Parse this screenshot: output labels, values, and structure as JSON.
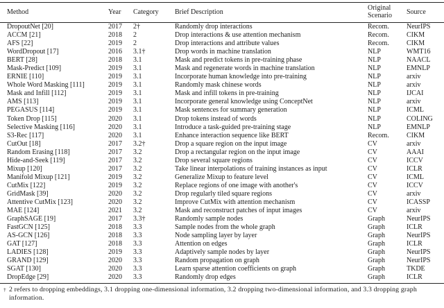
{
  "colors": {
    "text": "#1b1b1b",
    "background": "#ffffff",
    "rule": "#242424"
  },
  "table": {
    "columns": [
      "Method",
      "Year",
      "Category",
      "Brief Description",
      "Original Scenario",
      "Source"
    ],
    "rows": [
      [
        "DropoutNet [20]",
        "2017",
        "2†",
        "Randomly drop interactions",
        "Recom.",
        "NeurIPS"
      ],
      [
        "ACCM [21]",
        "2018",
        "2",
        "Drop interactions & use attention mechanism",
        "Recom.",
        "CIKM"
      ],
      [
        "AFS [22]",
        "2019",
        "2",
        "Drop interactions and attribute values",
        "Recom.",
        "CIKM"
      ],
      [
        "WordDropout [17]",
        "2016",
        "3.1†",
        "Drop words in machine translation",
        "NLP",
        "WMT16"
      ],
      [
        "BERT [28]",
        "2018",
        "3.1",
        "Mask and predict tokens in pre-training phase",
        "NLP",
        "NAACL"
      ],
      [
        "Mask-Predict [109]",
        "2019",
        "3.1",
        "Mask and regenerate words in machine translation",
        "NLP",
        "EMNLP"
      ],
      [
        "ERNIE [110]",
        "2019",
        "3.1",
        "Incorporate human knowledge into pre-training",
        "NLP",
        "arxiv"
      ],
      [
        "Whole Word Masking [111]",
        "2019",
        "3.1",
        "Randomly mask chinese words",
        "NLP",
        "arxiv"
      ],
      [
        "Mask and Infill [112]",
        "2019",
        "3.1",
        "Mask and infill tokens in pre-training",
        "NLP",
        "IJCAI"
      ],
      [
        "AMS [113]",
        "2019",
        "3.1",
        "Incorporate general knowledge using ConceptNet",
        "NLP",
        "arxiv"
      ],
      [
        "PEGASUS [114]",
        "2019",
        "3.1",
        "Mask sentences for summary generation",
        "NLP",
        "ICML"
      ],
      [
        "Token Drop [115]",
        "2020",
        "3.1",
        "Drop tokens instead of words",
        "NLP",
        "COLING"
      ],
      [
        "Selective Masking [116]",
        "2020",
        "3.1",
        "Introduce a task-guided pre-training stage",
        "NLP",
        "EMNLP"
      ],
      [
        "S3-Rec [117]",
        "2020",
        "3.1",
        "Enhance interaction sequence like BERT",
        "Recom.",
        "CIKM"
      ],
      [
        "CutOut [18]",
        "2017",
        "3.2†",
        "Drop a square region on the input image",
        "CV",
        "arxiv"
      ],
      [
        "Random Erasing [118]",
        "2017",
        "3.2",
        "Drop a rectangular region on the input image",
        "CV",
        "AAAI"
      ],
      [
        "Hide-and-Seek [119]",
        "2017",
        "3.2",
        "Drop several square regions",
        "CV",
        "ICCV"
      ],
      [
        "Mixup [120]",
        "2017",
        "3.2",
        "Take linear interpolations of training instances as input",
        "CV",
        "ICLR"
      ],
      [
        "Manifold Mixup [121]",
        "2019",
        "3.2",
        "Generalize Mixup to feature level",
        "CV",
        "ICML"
      ],
      [
        "CutMix [122]",
        "2019",
        "3.2",
        "Replace regions of one image with another's",
        "CV",
        "ICCV"
      ],
      [
        "GridMask [39]",
        "2020",
        "3.2",
        "Drop regularly tiled square regions",
        "CV",
        "arxiv"
      ],
      [
        "Attentive CutMix [123]",
        "2020",
        "3.2",
        "Improve CutMix with attention mechanism",
        "CV",
        "ICASSP"
      ],
      [
        "MAE [124]",
        "2021",
        "3.2",
        "Mask and reconstruct patches of input images",
        "CV",
        "arxiv"
      ],
      [
        "GraphSAGE [19]",
        "2017",
        "3.3†",
        "Randomly sample nodes",
        "Graph",
        "NeurIPS"
      ],
      [
        "FastGCN [125]",
        "2018",
        "3.3",
        "Sample nodes from the whole graph",
        "Graph",
        "ICLR"
      ],
      [
        "AS-GCN [126]",
        "2018",
        "3.3",
        "Node sampling layer by layer",
        "Graph",
        "NeurIPS"
      ],
      [
        "GAT [127]",
        "2018",
        "3.3",
        "Attention on edges",
        "Graph",
        "ICLR"
      ],
      [
        "LADIES [128]",
        "2019",
        "3.3",
        "Adaptively sample nodes by layer",
        "Graph",
        "NeurIPS"
      ],
      [
        "GRAND [129]",
        "2020",
        "3.3",
        "Random propagation on graph",
        "Graph",
        "NeurIPS"
      ],
      [
        "SGAT [130]",
        "2020",
        "3.3",
        "Learn sparse attention coefficients on graph",
        "Graph",
        "TKDE"
      ],
      [
        "DropEdge [29]",
        "2020",
        "3.3",
        "Randomly drop edges",
        "Graph",
        "ICLR"
      ]
    ]
  },
  "footnote": {
    "marker": "†",
    "text": "2 refers to dropping embeddings, 3.1 dropping one-dimensional information, 3.2 dropping two-dimensional information, and 3.3 dropping graph information."
  }
}
